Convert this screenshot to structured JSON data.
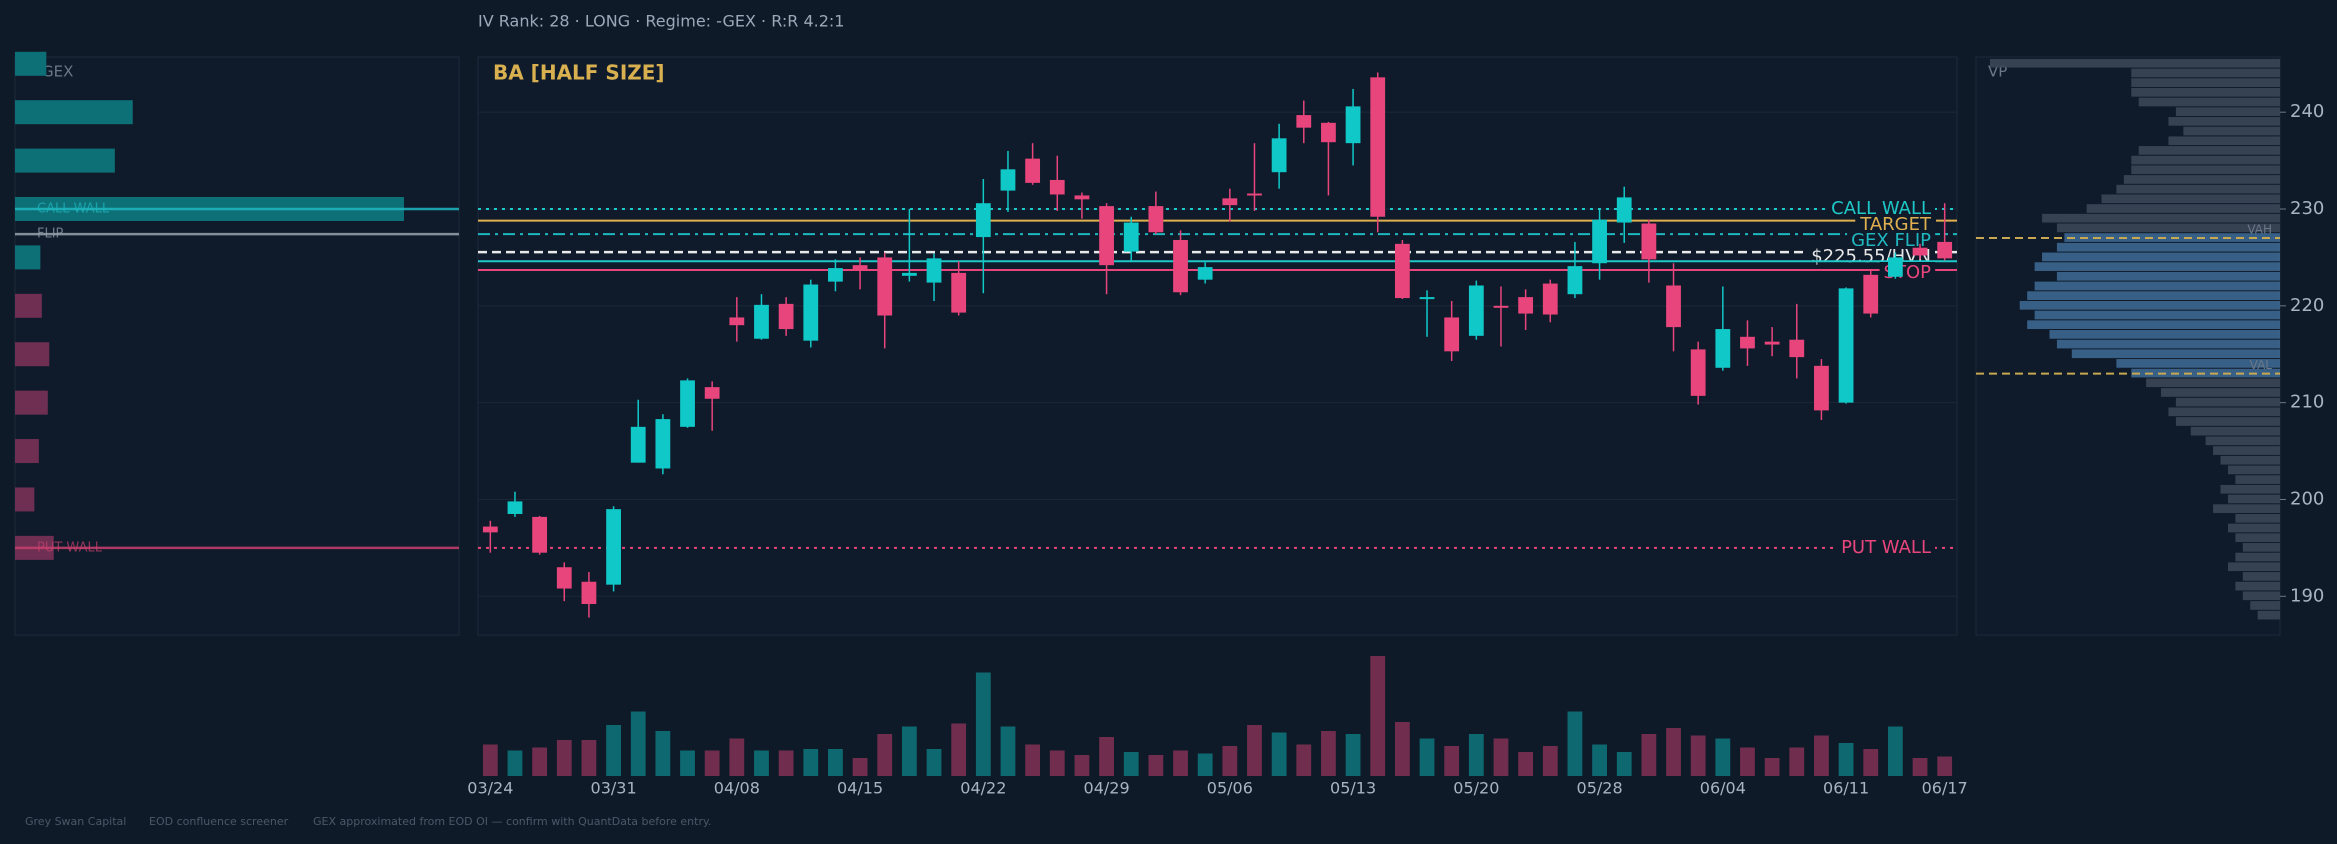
{
  "header": "IV Rank: 28  ·  LONG  ·  Regime: -GEX  ·  R:R 4.2:1",
  "chart_data": {
    "type": "candlestick",
    "title": "BA  [HALF SIZE]",
    "categories": [
      "03/24",
      null,
      null,
      null,
      null,
      "03/31",
      null,
      null,
      null,
      null,
      "04/08",
      null,
      null,
      null,
      null,
      "04/15",
      null,
      null,
      null,
      null,
      "04/22",
      null,
      null,
      null,
      null,
      "04/29",
      null,
      null,
      null,
      null,
      "05/06",
      null,
      null,
      null,
      null,
      "05/13",
      null,
      null,
      null,
      null,
      "05/20",
      null,
      null,
      null,
      null,
      "05/28",
      null,
      null,
      null,
      null,
      "06/04",
      null,
      null,
      null,
      null,
      "06/11",
      null,
      null,
      null,
      "06/17"
    ],
    "open": [
      197.2,
      198.5,
      198.2,
      193,
      191.5,
      191.2,
      203.8,
      203.2,
      207.5,
      211.6,
      218.8,
      216.6,
      220.2,
      216.4,
      222.5,
      224.2,
      225,
      223.1,
      222.4,
      223.4,
      227.1,
      231.9,
      235.2,
      233,
      231.4,
      230.3,
      225.6,
      230.3,
      226.8,
      222.7,
      231.1,
      231.6,
      233.8,
      239.7,
      238.9,
      236.8,
      243.6,
      226.4,
      220.7,
      218.8,
      216.9,
      220,
      220.9,
      222.3,
      221.2,
      224.4,
      228.6,
      228.5,
      222.1,
      215.5,
      213.6,
      216.8,
      216.3,
      216.5,
      213.8,
      210,
      223.2,
      223,
      226,
      226.6
    ],
    "high": [
      197.8,
      200.8,
      198.3,
      193.5,
      192.5,
      199.3,
      210.3,
      208.8,
      212.5,
      212.2,
      220.9,
      221.2,
      220.9,
      222.7,
      224.8,
      225,
      225.5,
      230,
      225.4,
      224.6,
      233.1,
      236,
      236.8,
      235.5,
      231.7,
      230.6,
      229.2,
      231.8,
      227.8,
      224.5,
      232.1,
      236.8,
      238.8,
      241.2,
      239,
      242.4,
      244.1,
      226.8,
      221.6,
      220.5,
      222.6,
      222,
      221.7,
      222.7,
      226.6,
      229.9,
      232.3,
      228.9,
      224.4,
      216.3,
      222,
      218.5,
      217.8,
      220.2,
      214.5,
      221.9,
      223.6,
      225.5,
      226.4,
      230.6
    ],
    "low": [
      194.5,
      198.2,
      194.3,
      189.5,
      187.8,
      190.5,
      203.8,
      202.6,
      207.4,
      207.1,
      216.3,
      216.5,
      216.9,
      215.7,
      221.5,
      221.7,
      215.6,
      222.5,
      220.5,
      219,
      221.3,
      229.7,
      232.5,
      229.8,
      229,
      221.2,
      224.6,
      227.4,
      221.1,
      222.3,
      228.7,
      229.8,
      232.1,
      236.8,
      231.4,
      234.5,
      227.6,
      220.7,
      216.8,
      214.3,
      216.5,
      215.8,
      217.5,
      218.3,
      220.8,
      222.7,
      226.5,
      222.4,
      215.3,
      209.8,
      213.3,
      213.8,
      214.8,
      212.5,
      208.2,
      209.9,
      218.8,
      222.8,
      224.8,
      224.7
    ],
    "close": [
      196.6,
      199.8,
      194.5,
      190.8,
      189.2,
      199,
      207.5,
      208.3,
      212.3,
      210.4,
      218,
      220.1,
      217.6,
      222.2,
      223.9,
      223.7,
      219,
      223.4,
      224.9,
      219.3,
      230.6,
      234.1,
      232.7,
      231.5,
      231,
      224.2,
      228.6,
      227.6,
      221.4,
      224,
      230.4,
      231.4,
      237.3,
      238.4,
      236.9,
      240.6,
      229.2,
      220.8,
      220.9,
      215.3,
      222.1,
      219.9,
      219.2,
      219.1,
      224.1,
      228.9,
      231.2,
      224.8,
      217.8,
      210.7,
      217.6,
      215.6,
      216,
      214.7,
      209.2,
      221.8,
      219.2,
      225,
      225.2,
      224.9
    ],
    "volume": [
      21,
      17,
      19,
      24,
      24,
      34,
      43,
      30,
      17,
      17,
      25,
      17,
      17,
      18,
      18,
      12,
      28,
      33,
      18,
      35,
      69,
      33,
      21,
      17,
      14,
      26,
      16,
      14,
      17,
      15,
      20,
      34,
      29,
      21,
      30,
      28,
      80,
      36,
      25,
      20,
      28,
      25,
      16,
      20,
      43,
      21,
      16,
      28,
      32,
      27,
      25,
      19,
      12,
      19,
      27,
      22,
      18,
      33,
      12,
      13
    ],
    "up_color": "#10c8c8",
    "down_color": "#e8457c",
    "ylim": [
      186,
      245.7
    ],
    "yticks": [
      190,
      200,
      210,
      220,
      230,
      240
    ],
    "grid": true,
    "levels": [
      {
        "label": "CALL WALL",
        "value": 230,
        "color": "#1fc8c8",
        "style": "dotted"
      },
      {
        "label": "TARGET",
        "value": 228.8,
        "color": "#e0b050",
        "style": "solid"
      },
      {
        "label": "GEX FLIP",
        "value": 227.4,
        "color": "#1fb8c0",
        "style": "dashdot"
      },
      {
        "label": "$225.55/HVN",
        "value": 225.55,
        "color": "#e8e8e8",
        "style": "dashed"
      },
      {
        "value": 224.6,
        "color": "#1fc8c8",
        "style": "solid"
      },
      {
        "label": "STOP",
        "value": 223.7,
        "color": "#e8457c",
        "style": "solid"
      },
      {
        "label": "PUT WALL",
        "value": 195,
        "color": "#e8457c",
        "style": "dotted"
      }
    ],
    "gex": {
      "title": "GEX",
      "prices": [
        245,
        240,
        235,
        230,
        225,
        220,
        215,
        210,
        205,
        200,
        195
      ],
      "values": [
        21,
        79,
        67,
        261,
        17,
        -18,
        -23,
        -22,
        -16,
        -13,
        -26
      ],
      "pos_color": "#0e7077",
      "neg_color": "#6e2f53",
      "lines": [
        {
          "label": "CALL WALL",
          "value": 230,
          "color": "#1fb8c0"
        },
        {
          "label": "FLIP",
          "value": 227.4,
          "color": "#9aa4b0"
        },
        {
          "label": "PUT WALL",
          "value": 195,
          "color": "#c8406e"
        }
      ]
    },
    "volume_profile": {
      "title": "VP",
      "prices": [
        245,
        244,
        243,
        242,
        241,
        240,
        239,
        238,
        237,
        236,
        235,
        234,
        233,
        232,
        231,
        230,
        229,
        228,
        227,
        226,
        225,
        224,
        223,
        222,
        221,
        220,
        219,
        218,
        217,
        216,
        215,
        214,
        213,
        212,
        211,
        210,
        209,
        208,
        207,
        206,
        205,
        204,
        203,
        202,
        201,
        200,
        199,
        198,
        197,
        196,
        195,
        194,
        193,
        192,
        191,
        190,
        189,
        188
      ],
      "values": [
        195,
        100,
        100,
        100,
        95,
        70,
        75,
        65,
        75,
        95,
        100,
        100,
        105,
        110,
        120,
        130,
        160,
        150,
        145,
        150,
        160,
        165,
        150,
        165,
        170,
        175,
        165,
        170,
        155,
        150,
        140,
        110,
        100,
        90,
        80,
        70,
        75,
        70,
        60,
        50,
        45,
        40,
        35,
        30,
        40,
        35,
        45,
        30,
        35,
        30,
        25,
        30,
        35,
        25,
        30,
        25,
        20,
        15
      ],
      "va_color": "#3d6890",
      "color": "#3b4656",
      "vah": {
        "label": "VAH",
        "value": 227
      },
      "val": {
        "label": "VAL",
        "value": 213
      },
      "line_color": "#c8a850"
    }
  },
  "footer": [
    "Grey Swan Capital",
    "EOD confluence screener",
    "GEX approximated from EOD OI — confirm with QuantData before entry."
  ]
}
